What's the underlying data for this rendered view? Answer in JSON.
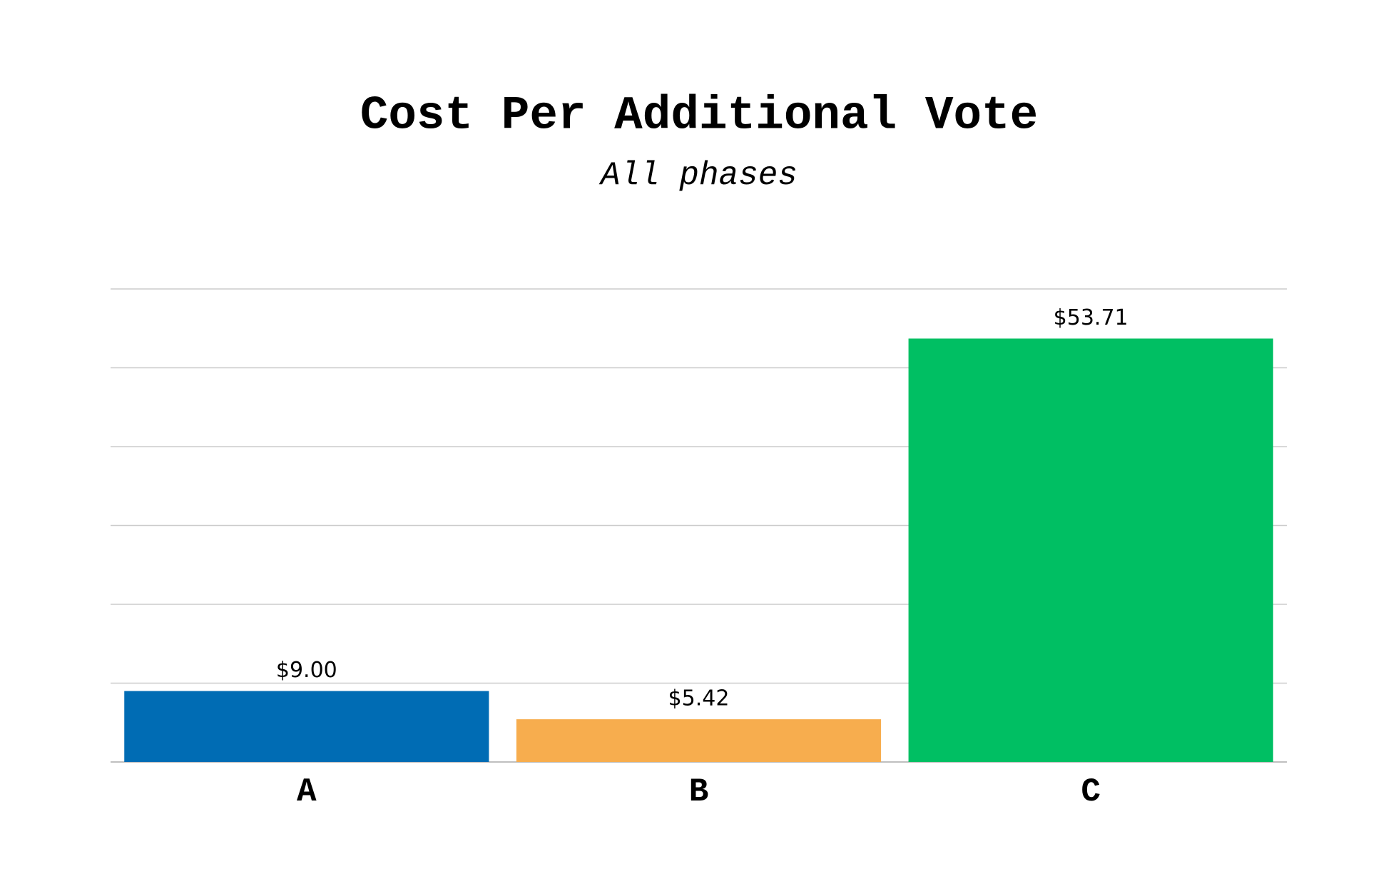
{
  "chart_data": {
    "type": "bar",
    "title": "Cost Per Additional Vote",
    "subtitle": "All phases",
    "categories": [
      "A",
      "B",
      "C"
    ],
    "values": [
      9.0,
      5.42,
      53.71
    ],
    "value_labels": [
      "$9.00",
      "$5.42",
      "$53.71"
    ],
    "colors": [
      "#006cb4",
      "#f7ad4e",
      "#00bf63"
    ],
    "ylim": [
      0,
      60
    ],
    "yticks": [
      0,
      10,
      20,
      30,
      40,
      50,
      60
    ],
    "grid": true
  }
}
